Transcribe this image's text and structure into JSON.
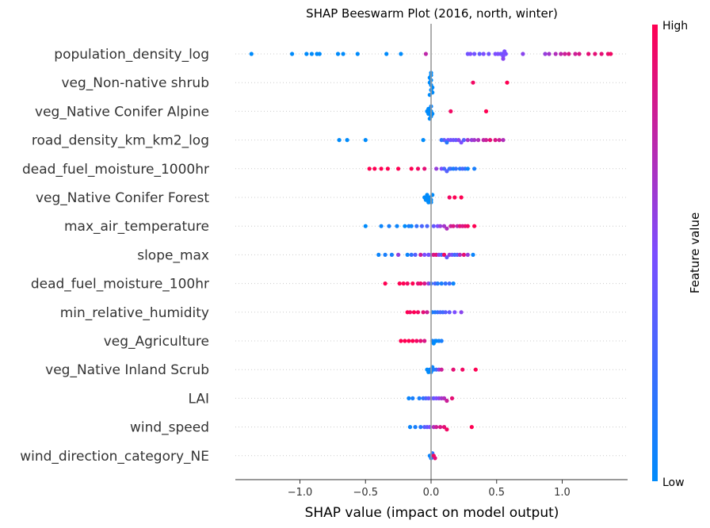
{
  "chart_data": {
    "type": "scatter",
    "subtype": "beeswarm",
    "title": "SHAP Beeswarm Plot (2016, north, winter)",
    "xlabel": "SHAP value (impact on model output)",
    "xlim": [
      -1.5,
      1.5
    ],
    "xticks": [
      -1.0,
      -0.5,
      0.0,
      0.5,
      1.0
    ],
    "xtick_labels": [
      "−1.0",
      "−0.5",
      "0.0",
      "0.5",
      "1.0"
    ],
    "colorbar": {
      "label": "Feature value",
      "high_label": "High",
      "low_label": "Low",
      "low_color": "#008bfb",
      "mid_color": "#7c4dff",
      "high_color": "#ff0052"
    },
    "features": [
      "population_density_log",
      "veg_Non-native shrub",
      "veg_Native Conifer Alpine",
      "road_density_km_km2_log",
      "dead_fuel_moisture_1000hr",
      "veg_Native Conifer Forest",
      "max_air_temperature",
      "slope_max",
      "dead_fuel_moisture_100hr",
      "min_relative_humidity",
      "veg_Agriculture",
      "veg_Native Inland Scrub",
      "LAI",
      "wind_speed",
      "wind_direction_category_NE"
    ],
    "points": [
      [
        [
          -1.37,
          0
        ],
        [
          -1.06,
          0
        ],
        [
          -0.95,
          0
        ],
        [
          -0.91,
          0
        ],
        [
          -0.87,
          0
        ],
        [
          -0.85,
          0
        ],
        [
          -0.71,
          0
        ],
        [
          -0.67,
          0
        ],
        [
          -0.56,
          0
        ],
        [
          -0.34,
          0
        ],
        [
          -0.23,
          0
        ],
        [
          -0.04,
          0.75
        ],
        [
          0.28,
          0.45
        ],
        [
          0.3,
          0.5
        ],
        [
          0.33,
          0.45
        ],
        [
          0.37,
          0.4
        ],
        [
          0.4,
          0.5
        ],
        [
          0.44,
          0.45
        ],
        [
          0.49,
          0.5
        ],
        [
          0.51,
          0.5
        ],
        [
          0.53,
          0.5
        ],
        [
          0.54,
          0.45
        ],
        [
          0.55,
          0.5
        ],
        [
          0.56,
          0.5
        ],
        [
          0.55,
          0.55
        ],
        [
          0.57,
          0.5
        ],
        [
          0.7,
          0.55
        ],
        [
          0.87,
          0.6
        ],
        [
          0.9,
          0.65
        ],
        [
          0.95,
          0.7
        ],
        [
          0.99,
          0.75
        ],
        [
          1.02,
          0.8
        ],
        [
          1.05,
          0.85
        ],
        [
          1.1,
          0.8
        ],
        [
          1.13,
          0.85
        ],
        [
          1.2,
          0.9
        ],
        [
          1.25,
          0.9
        ],
        [
          1.3,
          0.9
        ],
        [
          1.35,
          0.92
        ],
        [
          1.37,
          0.95
        ]
      ],
      [
        [
          -0.01,
          0
        ],
        [
          0,
          0
        ],
        [
          0,
          0
        ],
        [
          0.01,
          0
        ],
        [
          -0.01,
          0
        ],
        [
          0,
          0
        ],
        [
          0,
          0
        ],
        [
          0.01,
          0
        ],
        [
          0,
          0
        ],
        [
          -0.01,
          0
        ],
        [
          0.32,
          0.95
        ],
        [
          0.58,
          1
        ]
      ],
      [
        [
          -0.03,
          0
        ],
        [
          -0.02,
          0
        ],
        [
          0,
          0
        ],
        [
          0.01,
          0
        ],
        [
          -0.01,
          0
        ],
        [
          -0.02,
          0
        ],
        [
          0,
          0
        ],
        [
          0,
          0.05
        ],
        [
          -0.01,
          0
        ],
        [
          0.15,
          0.95
        ],
        [
          0.42,
          1
        ]
      ],
      [
        [
          -0.7,
          0
        ],
        [
          -0.64,
          0
        ],
        [
          -0.5,
          0
        ],
        [
          -0.06,
          0
        ],
        [
          0.1,
          0.4
        ],
        [
          0.13,
          0.5
        ],
        [
          0.15,
          0.45
        ],
        [
          0.17,
          0.45
        ],
        [
          0.19,
          0.4
        ],
        [
          0.21,
          0.55
        ],
        [
          0.23,
          0.5
        ],
        [
          0.25,
          0.35
        ],
        [
          0.28,
          0.65
        ],
        [
          0.31,
          0.6
        ],
        [
          0.33,
          0.65
        ],
        [
          0.36,
          0.7
        ],
        [
          0.4,
          0.75
        ],
        [
          0.42,
          0.8
        ],
        [
          0.45,
          0.9
        ],
        [
          0.49,
          0.85
        ],
        [
          0.52,
          0.8
        ],
        [
          0.55,
          0.7
        ],
        [
          0.08,
          0.2
        ],
        [
          0.12,
          0.15
        ]
      ],
      [
        [
          -0.47,
          1
        ],
        [
          -0.43,
          1
        ],
        [
          -0.38,
          1
        ],
        [
          -0.33,
          1
        ],
        [
          -0.25,
          1
        ],
        [
          -0.15,
          1
        ],
        [
          -0.1,
          0.95
        ],
        [
          -0.05,
          0.9
        ],
        [
          0.04,
          0.6
        ],
        [
          0.08,
          0.5
        ],
        [
          0.1,
          0.3
        ],
        [
          0.12,
          0.35
        ],
        [
          0.14,
          0.2
        ],
        [
          0.15,
          0.25
        ],
        [
          0.17,
          0.1
        ],
        [
          0.19,
          0.2
        ],
        [
          0.22,
          0.15
        ],
        [
          0.24,
          0.3
        ],
        [
          0.26,
          0.2
        ],
        [
          0.28,
          0.05
        ],
        [
          0.33,
          0.1
        ]
      ],
      [
        [
          -0.05,
          0
        ],
        [
          -0.04,
          0
        ],
        [
          -0.03,
          0
        ],
        [
          -0.02,
          0
        ],
        [
          -0.01,
          0
        ],
        [
          0,
          0
        ],
        [
          0.01,
          0
        ],
        [
          -0.03,
          0
        ],
        [
          -0.02,
          0
        ],
        [
          0,
          0
        ],
        [
          0.14,
          0.95
        ],
        [
          0.18,
          1
        ],
        [
          0.23,
          1
        ]
      ],
      [
        [
          -0.5,
          0
        ],
        [
          -0.38,
          0.05
        ],
        [
          -0.32,
          0.1
        ],
        [
          -0.26,
          0.05
        ],
        [
          -0.2,
          0
        ],
        [
          -0.17,
          0.1
        ],
        [
          -0.15,
          0.05
        ],
        [
          -0.11,
          0.2
        ],
        [
          -0.07,
          0.3
        ],
        [
          -0.03,
          0.3
        ],
        [
          0.02,
          0.4
        ],
        [
          0.05,
          0.5
        ],
        [
          0.07,
          0.6
        ],
        [
          0.1,
          0.65
        ],
        [
          0.12,
          0.7
        ],
        [
          0.15,
          0.8
        ],
        [
          0.17,
          0.85
        ],
        [
          0.2,
          0.75
        ],
        [
          0.22,
          0.9
        ],
        [
          0.24,
          0.85
        ],
        [
          0.26,
          0.9
        ],
        [
          0.28,
          0.95
        ],
        [
          0.33,
          1
        ]
      ],
      [
        [
          -0.4,
          0.05
        ],
        [
          -0.35,
          0.1
        ],
        [
          -0.3,
          0.1
        ],
        [
          -0.25,
          0.6
        ],
        [
          -0.18,
          0.05
        ],
        [
          -0.15,
          0.2
        ],
        [
          -0.12,
          0.35
        ],
        [
          -0.08,
          0.8
        ],
        [
          -0.05,
          0.5
        ],
        [
          -0.02,
          0.45
        ],
        [
          0,
          0.5
        ],
        [
          0.02,
          0.85
        ],
        [
          0.04,
          0.9
        ],
        [
          0.06,
          0.55
        ],
        [
          0.08,
          0.3
        ],
        [
          0.1,
          0.95
        ],
        [
          0.12,
          0.4
        ],
        [
          0.14,
          0.6
        ],
        [
          0.16,
          0.45
        ],
        [
          0.18,
          0.25
        ],
        [
          0.2,
          0.35
        ],
        [
          0.22,
          0.7
        ],
        [
          0.25,
          0.9
        ],
        [
          0.28,
          0.6
        ],
        [
          0.32,
          0.05
        ]
      ],
      [
        [
          -0.35,
          1
        ],
        [
          -0.24,
          1
        ],
        [
          -0.21,
          1
        ],
        [
          -0.18,
          0.95
        ],
        [
          -0.14,
          1
        ],
        [
          -0.1,
          0.9
        ],
        [
          -0.08,
          0.95
        ],
        [
          -0.05,
          0.85
        ],
        [
          -0.02,
          0.6
        ],
        [
          0,
          0.2
        ],
        [
          0.03,
          0.3
        ],
        [
          0.05,
          0.15
        ],
        [
          0.08,
          0.1
        ],
        [
          0.11,
          0.2
        ],
        [
          0.14,
          0.25
        ],
        [
          0.17,
          0.05
        ]
      ],
      [
        [
          -0.18,
          1
        ],
        [
          -0.16,
          0.95
        ],
        [
          -0.13,
          1
        ],
        [
          -0.1,
          0.95
        ],
        [
          -0.06,
          0.9
        ],
        [
          -0.03,
          0.8
        ],
        [
          0.01,
          0.1
        ],
        [
          0.03,
          0.15
        ],
        [
          0.05,
          0.2
        ],
        [
          0.07,
          0.3
        ],
        [
          0.09,
          0.25
        ],
        [
          0.11,
          0.35
        ],
        [
          0.14,
          0.4
        ],
        [
          0.18,
          0.5
        ],
        [
          0.23,
          0.55
        ]
      ],
      [
        [
          -0.23,
          1
        ],
        [
          -0.2,
          1
        ],
        [
          -0.17,
          1
        ],
        [
          -0.14,
          1
        ],
        [
          -0.11,
          0.95
        ],
        [
          -0.08,
          0.9
        ],
        [
          -0.05,
          0.85
        ],
        [
          0.01,
          0.05
        ],
        [
          0.03,
          0.1
        ],
        [
          0.04,
          0
        ],
        [
          0.06,
          0.05
        ],
        [
          0.08,
          0.1
        ],
        [
          0.02,
          0
        ]
      ],
      [
        [
          -0.03,
          0
        ],
        [
          -0.02,
          0
        ],
        [
          -0.01,
          0.05
        ],
        [
          0,
          0
        ],
        [
          0.01,
          0.05
        ],
        [
          0.02,
          0.1
        ],
        [
          0.04,
          0.2
        ],
        [
          0.06,
          0.6
        ],
        [
          0.08,
          0.8
        ],
        [
          0.17,
          0.9
        ],
        [
          0.24,
          0.95
        ],
        [
          0.34,
          1
        ]
      ],
      [
        [
          -0.17,
          0.05
        ],
        [
          -0.14,
          0.1
        ],
        [
          -0.09,
          0.1
        ],
        [
          -0.06,
          0.2
        ],
        [
          -0.04,
          0.3
        ],
        [
          -0.02,
          0.4
        ],
        [
          0,
          0.45
        ],
        [
          0.02,
          0.4
        ],
        [
          0.04,
          0.5
        ],
        [
          0.06,
          0.55
        ],
        [
          0.08,
          0.65
        ],
        [
          0.1,
          0.7
        ],
        [
          0.12,
          0.8
        ],
        [
          0.16,
          0.9
        ]
      ],
      [
        [
          -0.16,
          0.05
        ],
        [
          -0.12,
          0.1
        ],
        [
          -0.08,
          0.15
        ],
        [
          -0.05,
          0.35
        ],
        [
          -0.03,
          0.4
        ],
        [
          -0.01,
          0.5
        ],
        [
          0.02,
          0.7
        ],
        [
          0.04,
          0.8
        ],
        [
          0.07,
          0.85
        ],
        [
          0.1,
          0.9
        ],
        [
          0.12,
          0.95
        ],
        [
          0.31,
          1
        ]
      ],
      [
        [
          -0.01,
          0.05
        ],
        [
          0,
          0.1
        ],
        [
          0.01,
          0.2
        ],
        [
          0.02,
          0.95
        ],
        [
          0.03,
          0.9
        ]
      ]
    ]
  }
}
